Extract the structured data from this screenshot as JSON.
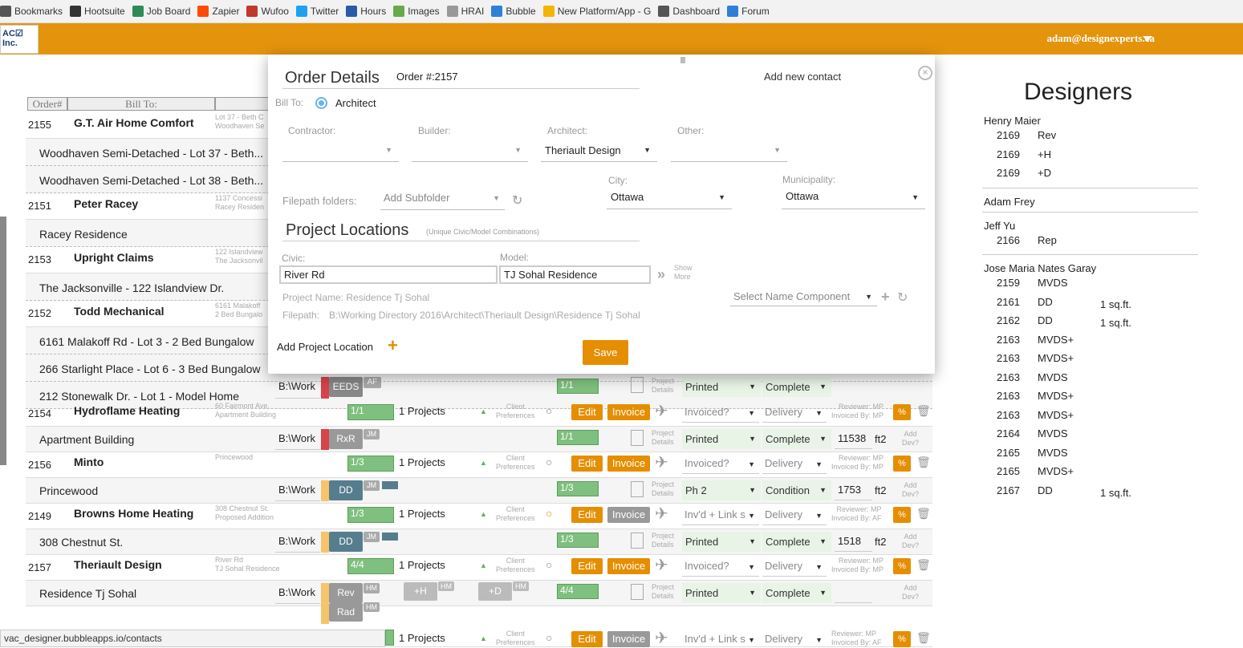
{
  "bookmarks": [
    {
      "label": "Bookmarks",
      "icon": "star-icon"
    },
    {
      "label": "Hootsuite",
      "icon": "owl-icon"
    },
    {
      "label": "Job Board",
      "icon": "sheet-icon"
    },
    {
      "label": "Zapier",
      "icon": "zapier-icon"
    },
    {
      "label": "Wufoo",
      "icon": "wufoo-icon"
    },
    {
      "label": "Twitter",
      "icon": "twitter-icon"
    },
    {
      "label": "Hours",
      "icon": "calendar-icon"
    },
    {
      "label": "Images",
      "icon": "shopify-icon"
    },
    {
      "label": "HRAI",
      "icon": "page-icon"
    },
    {
      "label": "Bubble",
      "icon": "bubble-icon"
    },
    {
      "label": "New Platform/App - G",
      "icon": "drive-icon"
    },
    {
      "label": "Dashboard",
      "icon": "dashboard-icon"
    },
    {
      "label": "Forum",
      "icon": "bubble-icon"
    }
  ],
  "header": {
    "logo": "AC",
    "logo_sub": "Inc.",
    "user": "adam@designexperts.ca"
  },
  "table": {
    "headers": [
      "Order#",
      "Bill To:"
    ]
  },
  "orders": [
    {
      "num": "2155",
      "client": "G.T. Air Home Comfort",
      "addr": "Lot 37 - Beth C",
      "addr2": "Woodhaven Se",
      "subs": [
        "Woodhaven Semi-Detached - Lot 37 - Beth...",
        "Woodhaven Semi-Detached - Lot 38 - Beth..."
      ]
    },
    {
      "num": "2151",
      "client": "Peter Racey",
      "addr": "1137 Concessi",
      "addr2": "Racey Residen",
      "subs": [
        "Racey Residence"
      ]
    },
    {
      "num": "2153",
      "client": "Upright Claims",
      "addr": "122 Islandview",
      "addr2": "The Jacksonvil",
      "subs": [
        "The Jacksonville - 122 Islandview Dr."
      ]
    },
    {
      "num": "2152",
      "client": "Todd Mechanical",
      "addr": "6161 Malakoff",
      "addr2": "2 Bed Bungalo",
      "subs": [
        "6161 Malakoff Rd - Lot 3 - 2 Bed Bungalow",
        "266 Starlight Place - Lot 6 - 3 Bed Bungalow",
        "212 Stonewalk Dr. - Lot 1 - Model Home"
      ]
    }
  ],
  "rows": [
    {
      "num": "2154",
      "client": "Hydroflame Heating",
      "a1": "60 Fairmont Ave.",
      "a2": "Apartment Building",
      "bar": "1/1",
      "projects": "1 Projects",
      "status": "Invoiced?",
      "del": "Delivery",
      "rev": "Reviewer: MP",
      "inv": "Invoiced By: MP",
      "sub": "Apartment Building",
      "path": "B:\\Work",
      "tag": "RxR",
      "tagi": "JM",
      "sbar": "1/1",
      "print": "Printed",
      "comp": "Complete",
      "ft": "11538",
      "ftu": "ft2"
    },
    {
      "num": "2156",
      "client": "Minto",
      "a1": "Princewood",
      "a2": "",
      "bar": "1/3",
      "projects": "1 Projects",
      "status": "Invoiced?",
      "del": "Delivery",
      "rev": "Reviewer: MP",
      "inv": "Invoiced By: MP",
      "sub": "Princewood",
      "path": "B:\\Work",
      "tag": "DD",
      "tagi": "JM",
      "sbar": "1/3",
      "print": "Ph 2",
      "comp": "Condition",
      "ft": "1753",
      "ftu": "ft2"
    },
    {
      "num": "2149",
      "client": "Browns Home Heating",
      "a1": "308 Chestnut St.",
      "a2": "Proposed Addition",
      "bar": "1/3",
      "projects": "1 Projects",
      "status": "Inv'd + Link s",
      "del": "Delivery",
      "rev": "Reviewer: MP",
      "inv": "Invoiced By: AF",
      "sub": "308 Chestnut St.",
      "path": "B:\\Work",
      "tag": "DD",
      "tagi": "JM",
      "sbar": "1/3",
      "print": "Printed",
      "comp": "Complete",
      "ft": "1518",
      "ftu": "ft2"
    },
    {
      "num": "2157",
      "client": "Theriault Design",
      "a1": "River Rd",
      "a2": "TJ Sohal Residence",
      "bar": "4/4",
      "projects": "1 Projects",
      "status": "Invoiced?",
      "del": "Delivery",
      "rev": "Reviewer: MP",
      "inv": "Invoiced By: MP",
      "sub": "Residence Tj Sohal",
      "path": "B:\\Work",
      "tag": "Rev",
      "tagi": "HM",
      "sbar": "4/4",
      "print": "Printed",
      "comp": "Complete",
      "ft": "",
      "ftu": ""
    }
  ],
  "row_labels": {
    "client_pref": "Client",
    "client_pref2": "Preferences",
    "edit": "Edit",
    "invoice": "Invoice",
    "proj_det": "Project",
    "proj_det2": "Details",
    "add_dev": "Add",
    "add_dev2": "Dev?",
    "pct": "%"
  },
  "extra_tags": {
    "h": "+H",
    "hi": "HM",
    "d": "+D",
    "di": "HM",
    "rad": "Rad",
    "radi": "HM"
  },
  "row_2152_tail": {
    "path": "B:\\Work",
    "tag": "EEDS",
    "tagi": "AF",
    "sbar": "1/1",
    "print": "Printed",
    "comp": "Complete",
    "proj": "Project",
    "proj2": "Details"
  },
  "last_row": {
    "projects": "1 Projects",
    "status": "Inv'd + Link s",
    "del": "Delivery",
    "rev": "Reviewer: MP",
    "inv": "Invoiced By: AF"
  },
  "status_bar": "vac_designer.bubbleapps.io/contacts",
  "modal": {
    "title": "Order Details",
    "order": "Order #:2157",
    "add_contact": "Add new contact",
    "bill_to": "Bill To:",
    "bill_opt": "Architect",
    "contractor": "Contractor:",
    "builder": "Builder:",
    "architect": "Architect:",
    "architect_val": "Theriault Design",
    "other": "Other:",
    "filepath_folders": "Filepath folders:",
    "add_subfolder": "Add Subfolder",
    "city": "City:",
    "city_val": "Ottawa",
    "muni": "Municipality:",
    "muni_val": "Ottawa",
    "locations": "Project Locations",
    "locations_sub": "(Unique Civic/Model Combinations)",
    "civic": "Civic:",
    "civic_val": "River Rd",
    "model": "Model:",
    "model_val": "TJ Sohal Residence",
    "show": "Show",
    "more": "More",
    "proj_name": "Project Name: Residence Tj Sohal",
    "filepath_lbl": "Filepath:",
    "filepath_val": "B:\\Working Directory 2016\\Architect\\Theriault Design\\Residence Tj Sohal",
    "name_comp": "Select Name Component",
    "add_loc": "Add Project Location",
    "save": "Save"
  },
  "designers": {
    "title": "Designers",
    "groups": [
      {
        "name": "Henry Maier",
        "items": [
          {
            "n": "2169",
            "c": "Rev",
            "s": ""
          },
          {
            "n": "2169",
            "c": "+H",
            "s": ""
          },
          {
            "n": "2169",
            "c": "+D",
            "s": ""
          }
        ]
      },
      {
        "name": "Adam Frey",
        "items": []
      },
      {
        "name": "Jeff Yu",
        "items": [
          {
            "n": "2166",
            "c": "Rep",
            "s": ""
          }
        ]
      },
      {
        "name": "Jose Maria Nates Garay",
        "items": [
          {
            "n": "2159",
            "c": "MVDS",
            "s": ""
          },
          {
            "n": "2161",
            "c": "DD",
            "s": "1 sq.ft."
          },
          {
            "n": "2162",
            "c": "DD",
            "s": "1 sq.ft."
          },
          {
            "n": "2163",
            "c": "MVDS+",
            "s": ""
          },
          {
            "n": "2163",
            "c": "MVDS+",
            "s": ""
          },
          {
            "n": "2163",
            "c": "MVDS",
            "s": ""
          },
          {
            "n": "2163",
            "c": "MVDS+",
            "s": ""
          },
          {
            "n": "2163",
            "c": "MVDS+",
            "s": ""
          },
          {
            "n": "2164",
            "c": "MVDS",
            "s": ""
          },
          {
            "n": "2165",
            "c": "MVDS",
            "s": ""
          },
          {
            "n": "2165",
            "c": "MVDS+",
            "s": ""
          },
          {
            "n": "2167",
            "c": "DD",
            "s": "1 sq.ft."
          }
        ]
      }
    ]
  }
}
